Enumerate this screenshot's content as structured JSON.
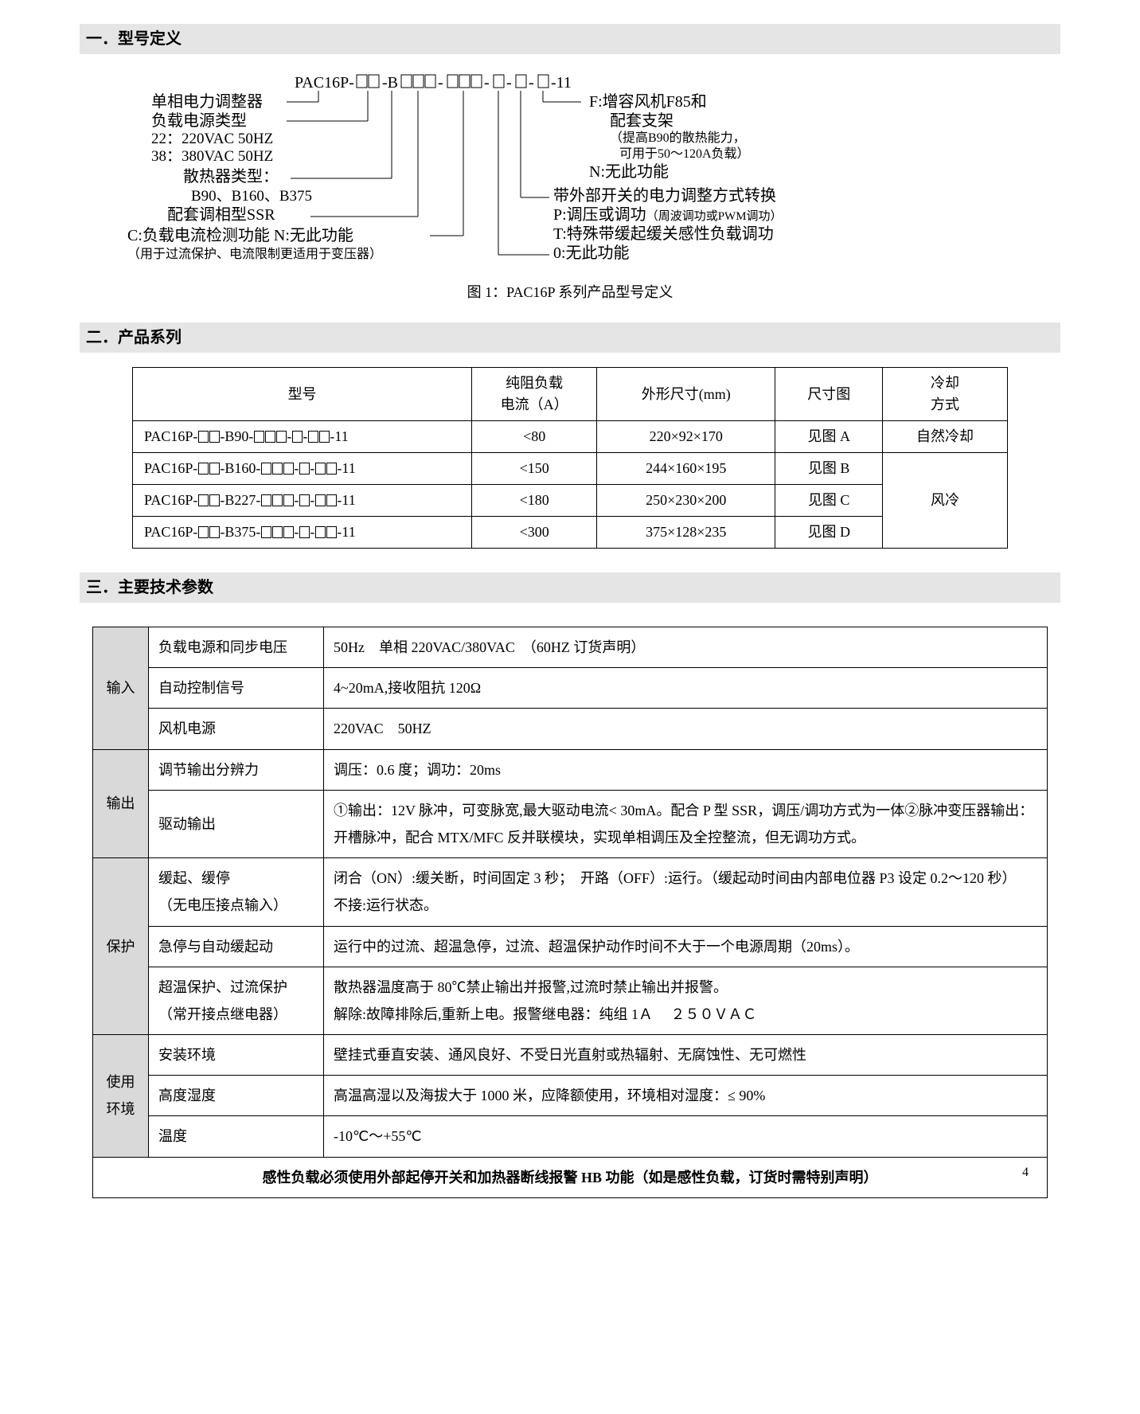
{
  "sections": {
    "s1_title": "一．型号定义",
    "s2_title": "二．产品系列",
    "s3_title": "三．主要技术参数"
  },
  "diagram": {
    "model_code": "PAC16P-☐☐-B☐☐☐-☐☐☐-☐-☐-☐-11",
    "left": {
      "l1": "单相电力调整器",
      "l2": "负载电源类型",
      "l3a": "22：220VAC 50HZ",
      "l3b": "38：380VAC 50HZ",
      "l4": "散热器类型：",
      "l4a": "B90、B160、B375",
      "l5": "配套调相型SSR",
      "l6a": "C:负载电流检测功能 N:无此功能",
      "l6b": "（用于过流保护、电流限制更适用于变压器）"
    },
    "right": {
      "r1a": "F:增容风机F85和",
      "r1b": "配套支架",
      "r1c": "（提高B90的散热能力，",
      "r1d": "可用于50～120A负载）",
      "r2": "N:无此功能",
      "r3": "带外部开关的电力调整方式转换",
      "r4": "P:调压或调功（周波调功或PWM调功）",
      "r5": "T:特殊带缓起缓关感性负载调功",
      "r6": "0:无此功能"
    },
    "caption": "图 1：PAC16P 系列产品型号定义"
  },
  "series_table": {
    "headers": [
      "型号",
      "纯阻负载\n电流（A）",
      "外形尺寸(mm)",
      "尺寸图",
      "冷却\n方式"
    ],
    "rows": [
      {
        "model_prefix": "PAC16P-",
        "model_mid": "-B90-",
        "model_suffix": "-11",
        "current": "<80",
        "dims": "220×92×170",
        "fig": "见图 A",
        "cool": "自然冷却"
      },
      {
        "model_prefix": "PAC16P-",
        "model_mid": "-B160-",
        "model_suffix": "-11",
        "current": "<150",
        "dims": "244×160×195",
        "fig": "见图 B",
        "cool": "风冷"
      },
      {
        "model_prefix": "PAC16P-",
        "model_mid": "-B227-",
        "model_suffix": "-11",
        "current": "<180",
        "dims": "250×230×200",
        "fig": "见图 C",
        "cool": "风冷"
      },
      {
        "model_prefix": "PAC16P-",
        "model_mid": "-B375-",
        "model_suffix": "-11",
        "current": "<300",
        "dims": "375×128×235",
        "fig": "见图 D",
        "cool": "风冷"
      }
    ]
  },
  "spec_table": {
    "groups": [
      {
        "cat": "输入",
        "rows": [
          {
            "sub": "负载电源和同步电压",
            "val": "50Hz　单相 220VAC/380VAC　（60HZ 订货声明）"
          },
          {
            "sub": "自动控制信号",
            "val": "4~20mA,接收阻抗 120Ω"
          },
          {
            "sub": "风机电源",
            "val": "220VAC　50HZ"
          }
        ]
      },
      {
        "cat": "输出",
        "rows": [
          {
            "sub": "调节输出分辨力",
            "val": "调压：0.6 度；调功：20ms"
          },
          {
            "sub": "驱动输出",
            "val": "①输出：12V 脉冲，可变脉宽,最大驱动电流< 30mA。配合 P 型 SSR，调压/调功方式为一体②脉冲变压器输出：开槽脉冲，配合 MTX/MFC 反并联模块，实现单相调压及全控整流，但无调功方式。"
          }
        ]
      },
      {
        "cat": "保护",
        "rows": [
          {
            "sub": "缓起、缓停\n（无电压接点输入）",
            "val": "闭合（ON）:缓关断，时间固定 3 秒；　开路（OFF）:运行。（缓起动时间由内部电位器 P3 设定 0.2～120 秒）　　　不接:运行状态。"
          },
          {
            "sub": "急停与自动缓起动",
            "val": "运行中的过流、超温急停，过流、超温保护动作时间不大于一个电源周期（20ms）。"
          },
          {
            "sub": "超温保护、过流保护\n（常开接点继电器）",
            "val": "散热器温度高于 80℃禁止输出并报警,过流时禁止输出并报警。\n解除:故障排除后,重新上电。报警继电器：纯组 1Ａ　 ２５０ＶＡＣ"
          }
        ]
      },
      {
        "cat": "使用\n环境",
        "rows": [
          {
            "sub": "安装环境",
            "val": "壁挂式垂直安装、通风良好、不受日光直射或热辐射、无腐蚀性、无可燃性"
          },
          {
            "sub": "高度湿度",
            "val": "高温高湿以及海拔大于 1000 米，应降额使用，环境相对湿度：≤ 90%"
          },
          {
            "sub": "温度",
            "val": "-10℃～+55℃"
          }
        ]
      }
    ],
    "footer": "感性负载必须使用外部起停开关和加热器断线报警 HB 功能（如是感性负载，订货时需特别声明）"
  },
  "page_number": "4"
}
